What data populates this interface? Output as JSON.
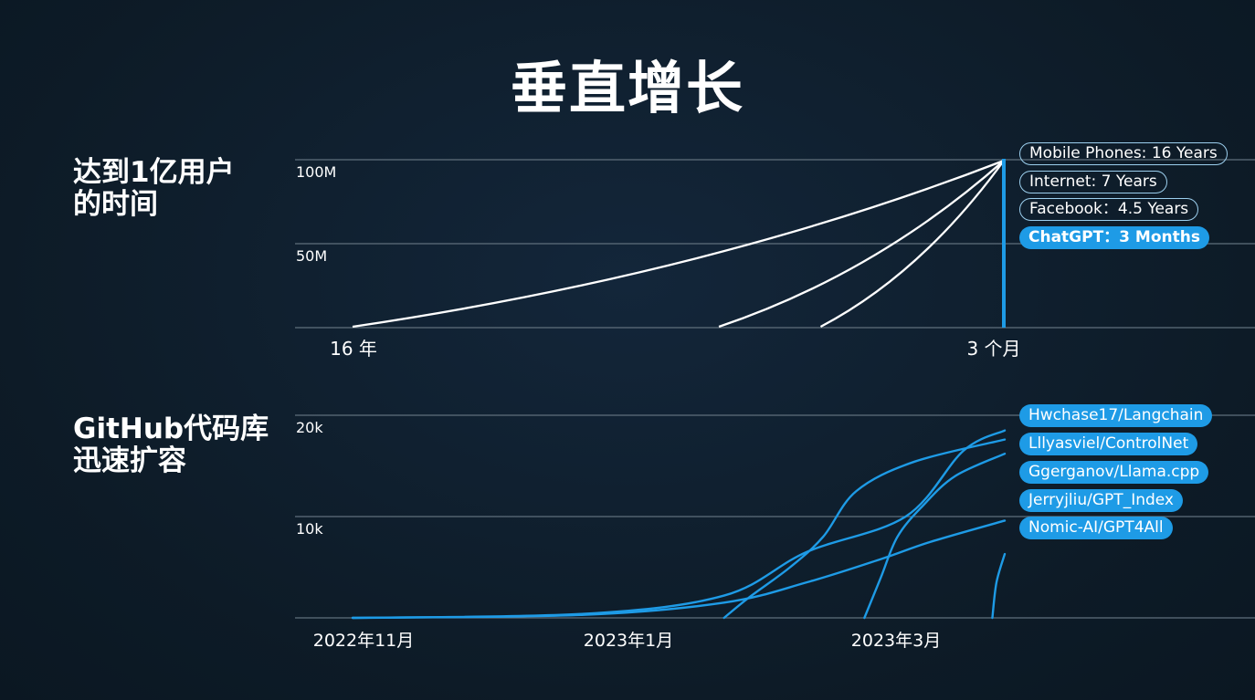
{
  "title": "垂直增长",
  "sections": [
    {
      "label": "达到1亿用户\n的时间"
    },
    {
      "label": "GitHub代码库\n迅速扩容"
    }
  ],
  "colors": {
    "background": "#0f1e2a",
    "white_line": "#ffffff",
    "accent_blue": "#1e9be6",
    "outline_pill": "#9ccfee",
    "grid": "#5f6f7c"
  },
  "chart_data": [
    {
      "type": "line",
      "title": "达到1亿用户的时间",
      "y_ticks": [
        "100M",
        "50M"
      ],
      "y_tick_values": [
        100,
        50
      ],
      "ylim": [
        0,
        100
      ],
      "x_labels": [
        "16 年",
        "3 个月"
      ],
      "series": [
        {
          "name": "Mobile Phones: 16 Years",
          "years": 16
        },
        {
          "name": "Internet: 7 Years",
          "years": 7
        },
        {
          "name": "Facebook：4.5 Years",
          "years": 4.5
        },
        {
          "name": "ChatGPT：3 Months",
          "years": 0.25
        }
      ],
      "end_value": 100,
      "grid": true
    },
    {
      "type": "line",
      "title": "GitHub代码库迅速扩容",
      "y_ticks": [
        "20k",
        "10k"
      ],
      "y_tick_values": [
        20000,
        10000
      ],
      "ylim": [
        0,
        20000
      ],
      "x_labels": [
        "2022年11月",
        "2023年1月",
        "2023年3月"
      ],
      "series": [
        {
          "name": "Hwchase17/Langchain",
          "values": [
            [
              0,
              0
            ],
            [
              0.28,
              400
            ],
            [
              0.45,
              2200
            ],
            [
              0.55,
              6500
            ],
            [
              0.67,
              10000
            ],
            [
              0.74,
              16500
            ],
            [
              0.79,
              18500
            ]
          ]
        },
        {
          "name": "Lllyasviel/ControlNet",
          "values": [
            [
              0.45,
              0
            ],
            [
              0.48,
              2000
            ],
            [
              0.53,
              5000
            ],
            [
              0.57,
              8000
            ],
            [
              0.61,
              12500
            ],
            [
              0.68,
              15400
            ],
            [
              0.79,
              17600
            ]
          ]
        },
        {
          "name": "Ggerganov/Llama.cpp",
          "values": [
            [
              0.62,
              0
            ],
            [
              0.64,
              4000
            ],
            [
              0.66,
              8000
            ],
            [
              0.69,
              11000
            ],
            [
              0.73,
              14000
            ],
            [
              0.79,
              16200
            ]
          ]
        },
        {
          "name": "Jerryjliu/GPT_Index",
          "values": [
            [
              0,
              0
            ],
            [
              0.28,
              300
            ],
            [
              0.45,
              1500
            ],
            [
              0.55,
              3500
            ],
            [
              0.64,
              5800
            ],
            [
              0.7,
              7500
            ],
            [
              0.79,
              9600
            ]
          ]
        },
        {
          "name": "Nomic-AI/GPT4All",
          "values": [
            [
              0.775,
              0
            ],
            [
              0.78,
              3500
            ],
            [
              0.79,
              6300
            ]
          ]
        }
      ],
      "grid": true
    }
  ]
}
